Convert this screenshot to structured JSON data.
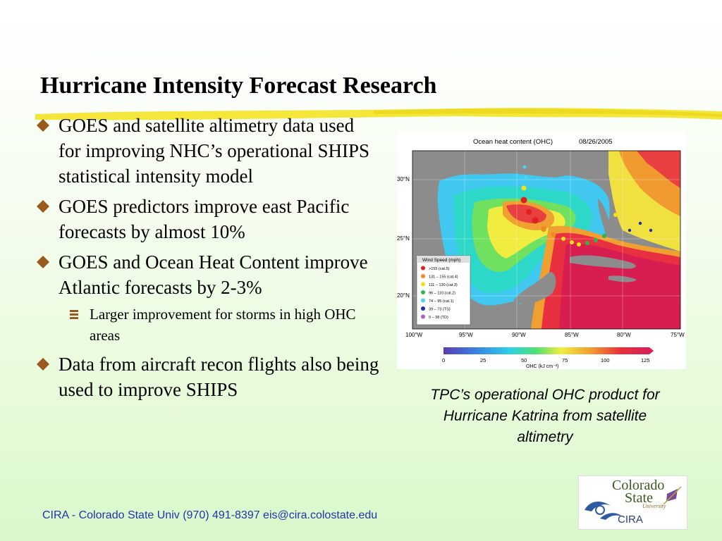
{
  "slide": {
    "title": "Hurricane Intensity Forecast Research",
    "bullets": [
      "GOES and satellite altimetry data used for improving NHC’s operational SHIPS statistical intensity model",
      "GOES predictors improve east Pacific forecasts by almost 10%",
      "GOES and Ocean Heat Content improve Atlantic forecasts by 2-3%",
      "Data from aircraft recon flights also being used to improve SHIPS"
    ],
    "sub_bullet": "Larger improvement for storms in high OHC areas",
    "caption": "TPC’s operational OHC product for Hurricane Katrina from satellite altimetry",
    "footer": "CIRA - Colorado State Univ (970) 491-8397   eis@cira.colostate.edu"
  },
  "map": {
    "title": "Ocean heat content (OHC)",
    "date": "08/26/2005",
    "lat_labels": [
      "30°N",
      "25°N",
      "20°N"
    ],
    "lon_labels": [
      "100°W",
      "95°W",
      "90°W",
      "85°W",
      "80°W",
      "75°W"
    ],
    "colorbar_ticks": [
      "0",
      "25",
      "50",
      "75",
      "100",
      "125"
    ],
    "colorbar_label": "OHC (kJ cm⁻²)",
    "legend_title": "Wind Speed (mph)",
    "legend_items": [
      {
        "label": ">155 (cat.5)",
        "color": "#e0201f"
      },
      {
        "label": "131 – 155 (cat.4)",
        "color": "#f08a20"
      },
      {
        "label": "111 – 130 (cat.3)",
        "color": "#f5e020"
      },
      {
        "label": "96 – 110 (cat.2)",
        "color": "#33b34a"
      },
      {
        "label": "74 – 95 (cat.1)",
        "color": "#4fd0f0"
      },
      {
        "label": "39 – 73 (TS)",
        "color": "#1a2fb0"
      },
      {
        "label": "0 – 38 (TD)",
        "color": "#b060c0"
      }
    ]
  },
  "logo": {
    "line1": "Colorado",
    "line2": "State",
    "line3": "University",
    "line4": "CIRA"
  },
  "colors": {
    "bullet_marker": "#9a5a1e",
    "highlight": "#f2e21a",
    "footer_text": "#2233aa"
  }
}
